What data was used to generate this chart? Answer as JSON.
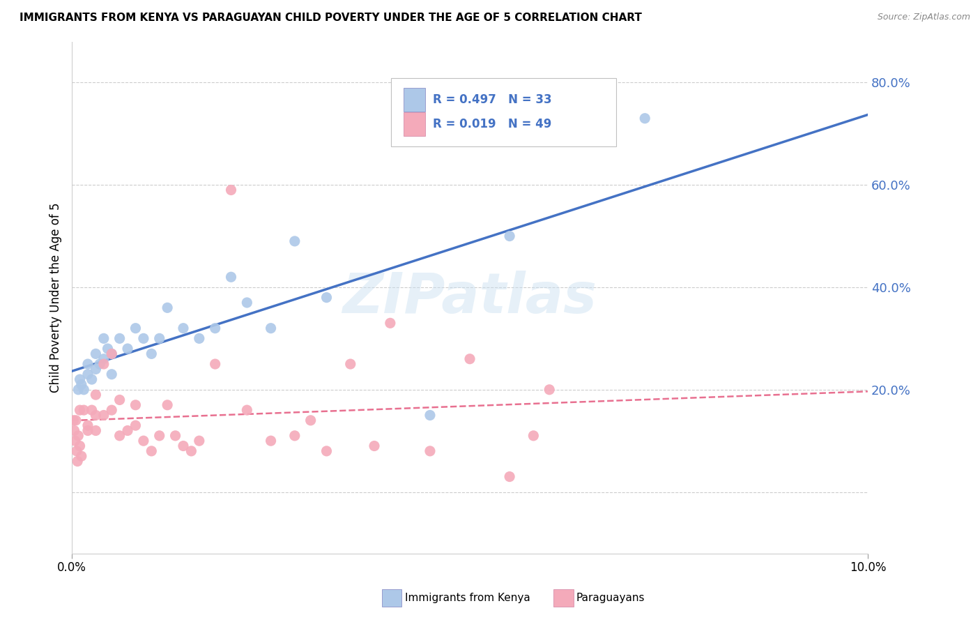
{
  "title": "IMMIGRANTS FROM KENYA VS PARAGUAYAN CHILD POVERTY UNDER THE AGE OF 5 CORRELATION CHART",
  "source": "Source: ZipAtlas.com",
  "ylabel": "Child Poverty Under the Age of 5",
  "legend_entries": [
    {
      "label": "Immigrants from Kenya",
      "R": "0.497",
      "N": "33",
      "color": "#adc8e8"
    },
    {
      "label": "Paraguayans",
      "R": "0.019",
      "N": "49",
      "color": "#f4aaba"
    }
  ],
  "kenya_color": "#adc8e8",
  "paraguay_color": "#f4aaba",
  "kenya_line_color": "#4472c4",
  "paraguay_line_color": "#e87090",
  "watermark": "ZIPatlas",
  "kenya_scatter_x": [
    0.0008,
    0.001,
    0.0012,
    0.0015,
    0.002,
    0.002,
    0.0025,
    0.003,
    0.003,
    0.0035,
    0.004,
    0.004,
    0.0045,
    0.005,
    0.005,
    0.006,
    0.007,
    0.008,
    0.009,
    0.01,
    0.011,
    0.012,
    0.014,
    0.016,
    0.018,
    0.02,
    0.022,
    0.025,
    0.028,
    0.032,
    0.045,
    0.055,
    0.072
  ],
  "kenya_scatter_y": [
    0.2,
    0.22,
    0.21,
    0.2,
    0.23,
    0.25,
    0.22,
    0.24,
    0.27,
    0.25,
    0.26,
    0.3,
    0.28,
    0.27,
    0.23,
    0.3,
    0.28,
    0.32,
    0.3,
    0.27,
    0.3,
    0.36,
    0.32,
    0.3,
    0.32,
    0.42,
    0.37,
    0.32,
    0.49,
    0.38,
    0.15,
    0.5,
    0.73
  ],
  "paraguay_scatter_x": [
    0.0002,
    0.0003,
    0.0004,
    0.0005,
    0.0006,
    0.0007,
    0.0008,
    0.001,
    0.001,
    0.0012,
    0.0015,
    0.002,
    0.002,
    0.0025,
    0.003,
    0.003,
    0.003,
    0.004,
    0.004,
    0.005,
    0.005,
    0.006,
    0.006,
    0.007,
    0.008,
    0.008,
    0.009,
    0.01,
    0.011,
    0.012,
    0.013,
    0.014,
    0.015,
    0.016,
    0.018,
    0.02,
    0.022,
    0.025,
    0.028,
    0.03,
    0.032,
    0.035,
    0.038,
    0.04,
    0.045,
    0.05,
    0.055,
    0.058,
    0.06
  ],
  "paraguay_scatter_y": [
    0.14,
    0.12,
    0.1,
    0.14,
    0.08,
    0.06,
    0.11,
    0.16,
    0.09,
    0.07,
    0.16,
    0.13,
    0.12,
    0.16,
    0.15,
    0.19,
    0.12,
    0.15,
    0.25,
    0.16,
    0.27,
    0.18,
    0.11,
    0.12,
    0.17,
    0.13,
    0.1,
    0.08,
    0.11,
    0.17,
    0.11,
    0.09,
    0.08,
    0.1,
    0.25,
    0.59,
    0.16,
    0.1,
    0.11,
    0.14,
    0.08,
    0.25,
    0.09,
    0.33,
    0.08,
    0.26,
    0.03,
    0.11,
    0.2
  ],
  "ylim_min": -0.12,
  "ylim_max": 0.88,
  "xlim_min": 0.0,
  "xlim_max": 0.1,
  "yticks": [
    0.0,
    0.2,
    0.4,
    0.6,
    0.8
  ],
  "ytick_labels": [
    "",
    "20.0%",
    "40.0%",
    "60.0%",
    "80.0%"
  ],
  "xtick_vals": [
    0.0,
    0.1
  ],
  "xtick_labels": [
    "0.0%",
    "10.0%"
  ]
}
